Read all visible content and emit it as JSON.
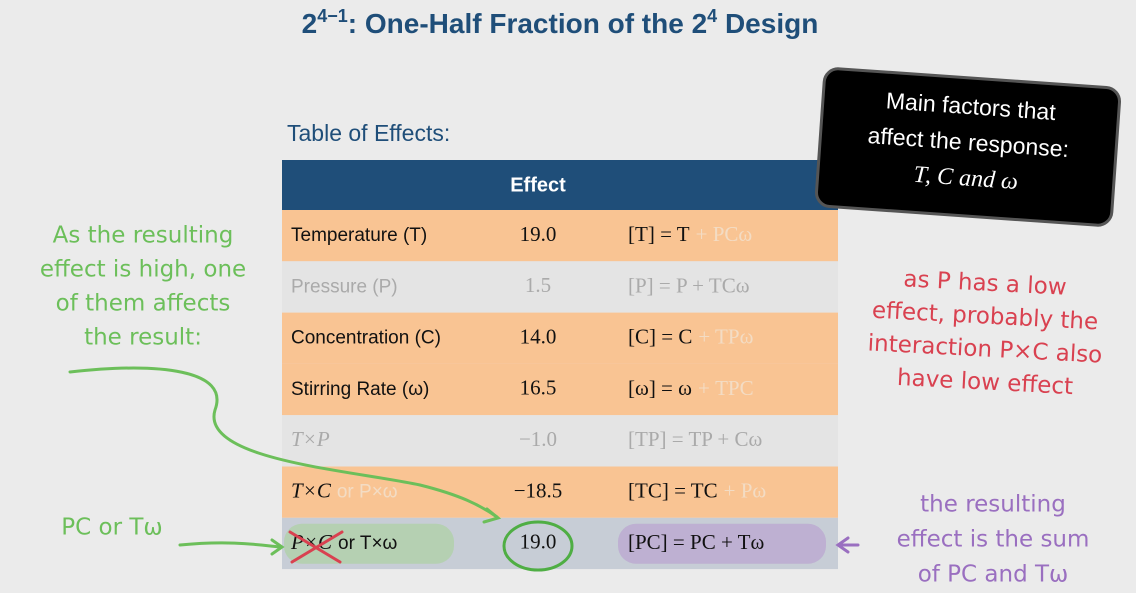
{
  "title": {
    "base": "2",
    "exp": "4−1",
    "mid": ": One-Half Fraction of the 2",
    "exp2": "4",
    "end": " Design"
  },
  "table": {
    "caption": "Table of Effects:",
    "header": "Effect",
    "rows": [
      {
        "name": "Temperature (T)",
        "effect": "19.0",
        "alias": "[T] = T",
        "alias_faded": "+ PCω"
      },
      {
        "name": "Pressure (P)",
        "effect": "1.5",
        "alias": "[P] = P + TCω"
      },
      {
        "name": "Concentration (C)",
        "effect": "14.0",
        "alias": "[C] = C",
        "alias_faded": "+ TPω"
      },
      {
        "name": "Stirring Rate (ω)",
        "effect": "16.5",
        "alias": "[ω] = ω",
        "alias_faded": "+ TPC"
      },
      {
        "name": "T×P",
        "effect": "−1.0",
        "alias": "[TP] = TP + Cω"
      },
      {
        "name": "T×C",
        "name_faded": "or P×ω",
        "effect": "−18.5",
        "alias": "[TC] = TC",
        "alias_faded": "+ Pω"
      },
      {
        "name": "P×C",
        "name_extra": "or T×ω",
        "effect": "19.0",
        "alias": "[PC] = PC + Tω"
      }
    ]
  },
  "callout": {
    "line1": "Main factors that",
    "line2": "affect the response:",
    "line3": "T, C and ω"
  },
  "annotations": {
    "green_left": [
      "As the resulting",
      "effect is high, one",
      "of them affects",
      "the result:"
    ],
    "green_bottom": "PC or Tω",
    "red": [
      "as P has a low",
      "effect, probably the",
      "interaction P×C also",
      "have low effect"
    ],
    "purple": [
      "the resulting",
      "effect is the sum",
      "of PC and Tω"
    ]
  }
}
